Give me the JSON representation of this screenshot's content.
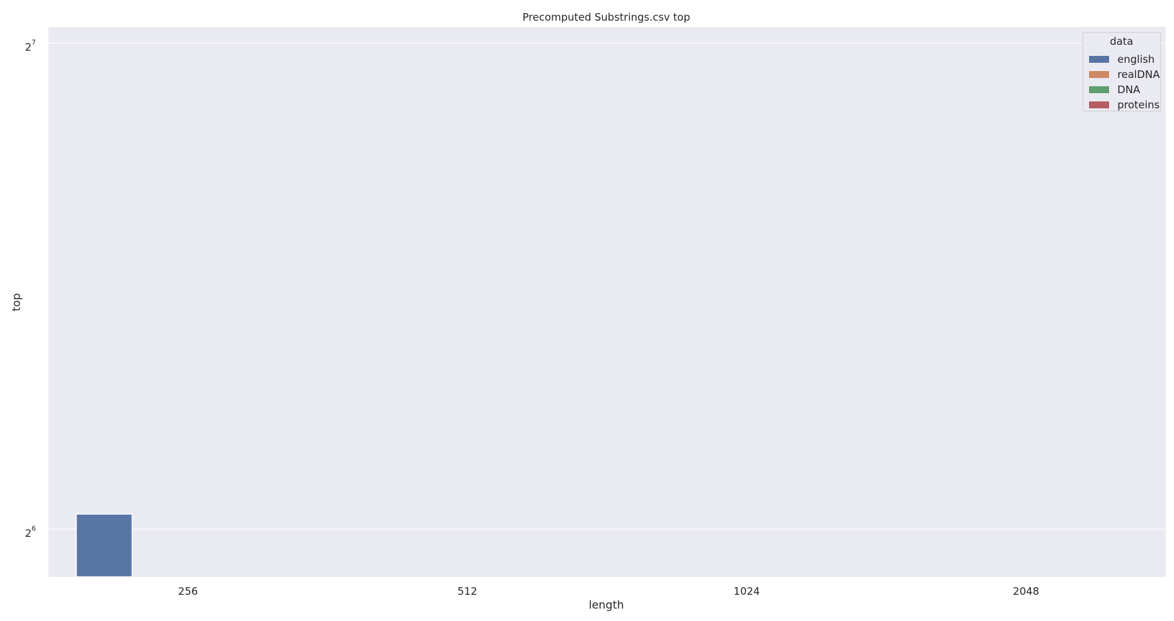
{
  "chart_data": {
    "type": "bar",
    "title": "Precomputed Substrings.csv top",
    "xlabel": "length",
    "ylabel": "top",
    "categories": [
      "256",
      "512",
      "1024",
      "2048"
    ],
    "y_scale": "log2",
    "ylim": [
      59.8,
      131
    ],
    "y_ticks": [
      {
        "value": 64,
        "base": "2",
        "exp": "6"
      },
      {
        "value": 128,
        "base": "2",
        "exp": "7"
      }
    ],
    "grid": true,
    "legend": {
      "title": "data",
      "placement": "top-right"
    },
    "series": [
      {
        "name": "english",
        "color": "#5875a4",
        "values": [
          65.4,
          null,
          null,
          null
        ]
      },
      {
        "name": "realDNA",
        "color": "#cc8963",
        "values": [
          null,
          null,
          null,
          null
        ]
      },
      {
        "name": "DNA",
        "color": "#5f9e6e",
        "values": [
          null,
          null,
          null,
          null
        ]
      },
      {
        "name": "proteins",
        "color": "#b55d60",
        "values": [
          null,
          null,
          null,
          null
        ]
      }
    ],
    "background_color": "#eaeaf2",
    "grid_color": "#ffffff"
  }
}
